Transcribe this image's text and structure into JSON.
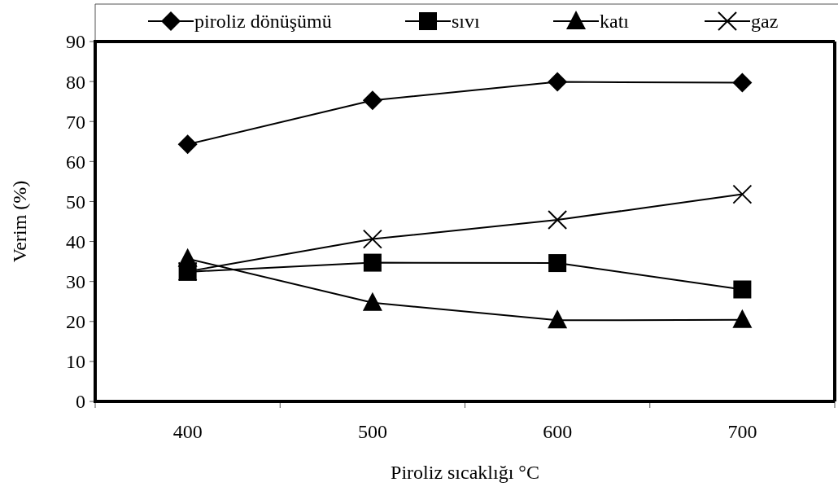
{
  "chart_data": {
    "type": "line",
    "xlabel": "Piroliz sıcaklığı °C",
    "ylabel": "Verim (%)",
    "categories": [
      "400",
      "500",
      "600",
      "700"
    ],
    "ylim": [
      0,
      90
    ],
    "yticks": [
      0,
      10,
      20,
      30,
      40,
      50,
      60,
      70,
      80,
      90
    ],
    "grid": false,
    "legend": "top",
    "line_style": "solid",
    "series": [
      {
        "name": "piroliz dönüşümü",
        "color": "#000000",
        "marker": "diamond",
        "values": [
          64.3,
          75.3,
          79.9,
          79.7
        ]
      },
      {
        "name": "sıvı",
        "color": "#000000",
        "marker": "square",
        "values": [
          32.4,
          34.7,
          34.6,
          28
        ]
      },
      {
        "name": "katı",
        "color": "#000000",
        "marker": "triangle",
        "values": [
          35.7,
          24.7,
          20.3,
          20.4
        ]
      },
      {
        "name": "gaz",
        "color": "#000000",
        "marker": "cross",
        "values": [
          32.5,
          40.6,
          45.4,
          51.8
        ]
      }
    ]
  }
}
